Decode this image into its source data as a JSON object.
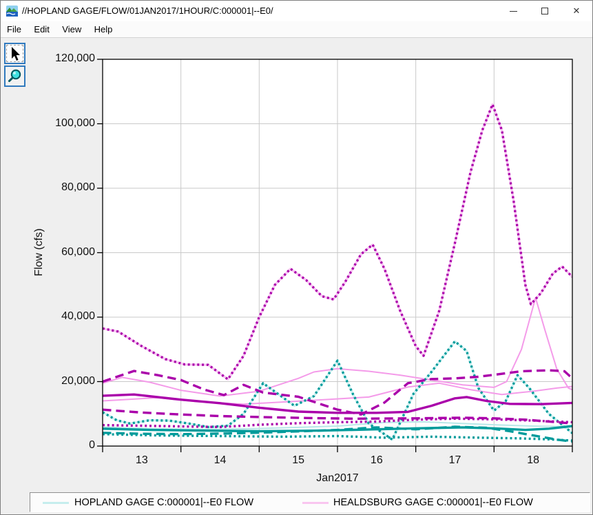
{
  "window": {
    "title": "//HOPLAND GAGE/FLOW/01JAN2017/1HOUR/C:000001|--E0/"
  },
  "menu": {
    "items": [
      "File",
      "Edit",
      "View",
      "Help"
    ]
  },
  "toolbar": {
    "buttons": [
      {
        "id": "pointer-tool",
        "selected": true
      },
      {
        "id": "zoom-tool",
        "selected": false
      }
    ]
  },
  "legend": {
    "entries": [
      {
        "label": "HOPLAND GAGE C:000001|--E0 FLOW",
        "color": "#c6eded"
      },
      {
        "label": "HEALDSBURG GAGE C:000001|--E0 FLOW",
        "color": "#f9c6ef"
      }
    ]
  },
  "colors": {
    "magenta": "#aa00aa",
    "teal": "#009b9b",
    "pink_obs": "#f49be9",
    "pink_halo": "#f7c2f2",
    "cyan_obs": "#b9e8e8",
    "cyan_halo": "#cdf0f0",
    "grid": "#c9c9c9",
    "plot_border": "#000000",
    "background": "#efefef"
  },
  "chart_data": {
    "type": "line",
    "title": "",
    "xlabel": "Jan2017",
    "ylabel": "Flow (cfs)",
    "x_domain": [
      13,
      19
    ],
    "y_domain": [
      0,
      120000
    ],
    "x_ticks": [
      13,
      14,
      15,
      16,
      17,
      18,
      19
    ],
    "x_tick_labels": [
      "13",
      "14",
      "15",
      "16",
      "17",
      "18"
    ],
    "x_labels_between_ticks": true,
    "y_ticks": [
      0,
      20000,
      40000,
      60000,
      80000,
      100000,
      120000
    ],
    "y_tick_labels": [
      "0",
      "20,000",
      "40,000",
      "60,000",
      "80,000",
      "100,000",
      "120,000"
    ],
    "grid": true,
    "legend_position": "bottom",
    "series": [
      {
        "id": "healdsburg-forecast-halo",
        "color": "#f7c2f2",
        "width": 3.2,
        "style": "solid",
        "points_from": "healdsburg-forecast-dotted-hi"
      },
      {
        "id": "hopland-forecast-halo",
        "color": "#cdf0f0",
        "width": 3.2,
        "style": "solid",
        "points_from": "hopland-forecast-dotted-peaks"
      },
      {
        "id": "healdsburg-observed",
        "color": "#f49be9",
        "width": 2,
        "style": "solid",
        "points": [
          [
            13,
            19500
          ],
          [
            13.25,
            21300
          ],
          [
            13.6,
            19800
          ],
          [
            14,
            17300
          ],
          [
            14.5,
            15500
          ],
          [
            15,
            17000
          ],
          [
            15.5,
            21000
          ],
          [
            15.7,
            23000
          ],
          [
            16,
            24000
          ],
          [
            16.4,
            23200
          ],
          [
            16.8,
            22000
          ],
          [
            17.2,
            20500
          ],
          [
            17.6,
            19000
          ],
          [
            18,
            18200
          ],
          [
            18.16,
            20000
          ],
          [
            18.35,
            30000
          ],
          [
            18.53,
            46000
          ],
          [
            18.65,
            36000
          ],
          [
            18.8,
            24000
          ],
          [
            18.95,
            18000
          ],
          [
            19,
            17500
          ]
        ]
      },
      {
        "id": "healdsburg-observed-2",
        "color": "#f49be9",
        "width": 2,
        "style": "solid",
        "points": [
          [
            13,
            14000
          ],
          [
            13.7,
            15000
          ],
          [
            14.2,
            13800
          ],
          [
            14.8,
            13000
          ],
          [
            15.4,
            13800
          ],
          [
            15.9,
            14500
          ],
          [
            16.4,
            15200
          ],
          [
            16.9,
            18300
          ],
          [
            17.3,
            19500
          ],
          [
            17.7,
            17500
          ],
          [
            18.1,
            16000
          ],
          [
            18.5,
            17000
          ],
          [
            18.8,
            18000
          ],
          [
            19,
            18500
          ]
        ]
      },
      {
        "id": "hopland-observed",
        "color": "#b9e8e8",
        "width": 2,
        "style": "solid",
        "points": [
          [
            13,
            5900
          ],
          [
            13.6,
            5400
          ],
          [
            14.2,
            5200
          ],
          [
            14.9,
            5400
          ],
          [
            15.5,
            5800
          ],
          [
            16,
            6200
          ],
          [
            16.6,
            7300
          ],
          [
            17.1,
            7500
          ],
          [
            17.6,
            7000
          ],
          [
            18,
            6600
          ],
          [
            18.5,
            6200
          ],
          [
            19,
            6000
          ]
        ]
      },
      {
        "id": "hopland-forecast-dotted-lo",
        "color": "#009b9b",
        "width": 3.4,
        "style": "dotted",
        "points": [
          [
            13,
            3700
          ],
          [
            13.7,
            3300
          ],
          [
            14.5,
            3100
          ],
          [
            15.3,
            2900
          ],
          [
            16,
            3100
          ],
          [
            16.6,
            2600
          ],
          [
            17.2,
            2900
          ],
          [
            17.8,
            2600
          ],
          [
            18.3,
            2400
          ],
          [
            18.7,
            2100
          ],
          [
            19,
            1700
          ]
        ]
      },
      {
        "id": "hopland-forecast-dashed",
        "color": "#009b9b",
        "width": 3.4,
        "style": "dashed",
        "points": [
          [
            13,
            4100
          ],
          [
            13.5,
            3800
          ],
          [
            14,
            3700
          ],
          [
            14.6,
            3900
          ],
          [
            15.2,
            4300
          ],
          [
            16,
            5000
          ],
          [
            16.5,
            5800
          ],
          [
            17,
            5200
          ],
          [
            17.5,
            6000
          ],
          [
            17.9,
            5700
          ],
          [
            18.2,
            4600
          ],
          [
            18.5,
            3300
          ],
          [
            18.8,
            2000
          ],
          [
            19,
            1400
          ]
        ]
      },
      {
        "id": "hopland-forecast-solid",
        "color": "#009b9b",
        "width": 3.4,
        "style": "solid",
        "points": [
          [
            13,
            5400
          ],
          [
            13.6,
            5000
          ],
          [
            14.3,
            4800
          ],
          [
            15,
            4600
          ],
          [
            15.8,
            4800
          ],
          [
            16.5,
            5200
          ],
          [
            17,
            5500
          ],
          [
            17.6,
            5800
          ],
          [
            18,
            5500
          ],
          [
            18.4,
            5000
          ],
          [
            18.7,
            5400
          ],
          [
            19,
            6200
          ]
        ]
      },
      {
        "id": "hopland-forecast-dotted-peaks",
        "color": "#009b9b",
        "width": 3.4,
        "style": "dotted",
        "points": [
          [
            13,
            10500
          ],
          [
            13.18,
            8000
          ],
          [
            13.35,
            7000
          ],
          [
            13.6,
            8000
          ],
          [
            13.85,
            7900
          ],
          [
            14.1,
            7000
          ],
          [
            14.35,
            5900
          ],
          [
            14.6,
            6300
          ],
          [
            14.8,
            10000
          ],
          [
            15.05,
            19500
          ],
          [
            15.25,
            16000
          ],
          [
            15.45,
            12500
          ],
          [
            15.7,
            15500
          ],
          [
            16,
            26500
          ],
          [
            16.2,
            16000
          ],
          [
            16.4,
            7000
          ],
          [
            16.7,
            2000
          ],
          [
            16.97,
            16200
          ],
          [
            17.2,
            23000
          ],
          [
            17.5,
            32500
          ],
          [
            17.65,
            29500
          ],
          [
            17.8,
            18000
          ],
          [
            18,
            11000
          ],
          [
            18.15,
            14000
          ],
          [
            18.3,
            22000
          ],
          [
            18.45,
            18000
          ],
          [
            18.7,
            10000
          ],
          [
            19,
            4000
          ]
        ]
      },
      {
        "id": "healdsburg-forecast-dotted-lo",
        "color": "#aa00aa",
        "width": 3.4,
        "style": "dotted",
        "points": [
          [
            13,
            6500
          ],
          [
            13.5,
            6300
          ],
          [
            14,
            6100
          ],
          [
            14.5,
            5900
          ],
          [
            15,
            6600
          ],
          [
            15.5,
            7100
          ],
          [
            16,
            7400
          ],
          [
            16.5,
            7600
          ],
          [
            17,
            8200
          ],
          [
            17.5,
            8500
          ],
          [
            18,
            8300
          ],
          [
            18.5,
            7900
          ],
          [
            19,
            7400
          ]
        ]
      },
      {
        "id": "healdsburg-forecast-dashed-lo",
        "color": "#aa00aa",
        "width": 3.4,
        "style": "dashed",
        "points": [
          [
            13,
            11300
          ],
          [
            13.5,
            10400
          ],
          [
            14,
            9800
          ],
          [
            14.5,
            9300
          ],
          [
            15,
            9000
          ],
          [
            15.6,
            8700
          ],
          [
            16.2,
            8500
          ],
          [
            17,
            8600
          ],
          [
            17.6,
            8800
          ],
          [
            18,
            8600
          ],
          [
            18.4,
            8200
          ],
          [
            18.8,
            7400
          ],
          [
            19,
            7000
          ]
        ]
      },
      {
        "id": "healdsburg-forecast-solid",
        "color": "#aa00aa",
        "width": 3.4,
        "style": "solid",
        "points": [
          [
            13,
            15600
          ],
          [
            13.4,
            16000
          ],
          [
            14,
            14400
          ],
          [
            14.5,
            13300
          ],
          [
            15,
            11900
          ],
          [
            15.5,
            10700
          ],
          [
            16,
            10300
          ],
          [
            16.5,
            10300
          ],
          [
            16.9,
            10600
          ],
          [
            17.2,
            12500
          ],
          [
            17.5,
            14800
          ],
          [
            17.65,
            15200
          ],
          [
            17.9,
            14000
          ],
          [
            18.2,
            13100
          ],
          [
            18.6,
            13000
          ],
          [
            19,
            13400
          ]
        ]
      },
      {
        "id": "healdsburg-forecast-dashed-hi",
        "color": "#aa00aa",
        "width": 3.4,
        "style": "dashed",
        "points": [
          [
            13,
            20000
          ],
          [
            13.4,
            23300
          ],
          [
            13.7,
            22000
          ],
          [
            14,
            20500
          ],
          [
            14.3,
            17500
          ],
          [
            14.55,
            15800
          ],
          [
            14.8,
            19000
          ],
          [
            15.05,
            16600
          ],
          [
            15.5,
            15300
          ],
          [
            16,
            11300
          ],
          [
            16.3,
            9800
          ],
          [
            16.6,
            13500
          ],
          [
            16.9,
            19500
          ],
          [
            17.2,
            20800
          ],
          [
            17.5,
            21000
          ],
          [
            17.8,
            21500
          ],
          [
            18.35,
            23200
          ],
          [
            18.7,
            23500
          ],
          [
            18.9,
            23200
          ],
          [
            19,
            21000
          ]
        ]
      },
      {
        "id": "healdsburg-forecast-dotted-hi",
        "color": "#aa00aa",
        "width": 3.4,
        "style": "dotted",
        "points": [
          [
            13,
            36500
          ],
          [
            13.2,
            35500
          ],
          [
            13.5,
            31000
          ],
          [
            13.8,
            27000
          ],
          [
            14.05,
            25300
          ],
          [
            14.35,
            25200
          ],
          [
            14.6,
            20700
          ],
          [
            14.8,
            28000
          ],
          [
            15,
            40000
          ],
          [
            15.2,
            50000
          ],
          [
            15.4,
            55000
          ],
          [
            15.6,
            51500
          ],
          [
            15.8,
            46500
          ],
          [
            15.95,
            45500
          ],
          [
            16.1,
            51000
          ],
          [
            16.3,
            59500
          ],
          [
            16.45,
            62500
          ],
          [
            16.6,
            55000
          ],
          [
            16.8,
            42000
          ],
          [
            17,
            31000
          ],
          [
            17.1,
            28000
          ],
          [
            17.3,
            42000
          ],
          [
            17.5,
            63000
          ],
          [
            17.7,
            85000
          ],
          [
            17.85,
            98000
          ],
          [
            17.98,
            106000
          ],
          [
            18.1,
            98000
          ],
          [
            18.25,
            76000
          ],
          [
            18.4,
            50000
          ],
          [
            18.47,
            44000
          ],
          [
            18.6,
            47500
          ],
          [
            18.75,
            53500
          ],
          [
            18.87,
            55700
          ],
          [
            19,
            52500
          ]
        ]
      }
    ]
  }
}
